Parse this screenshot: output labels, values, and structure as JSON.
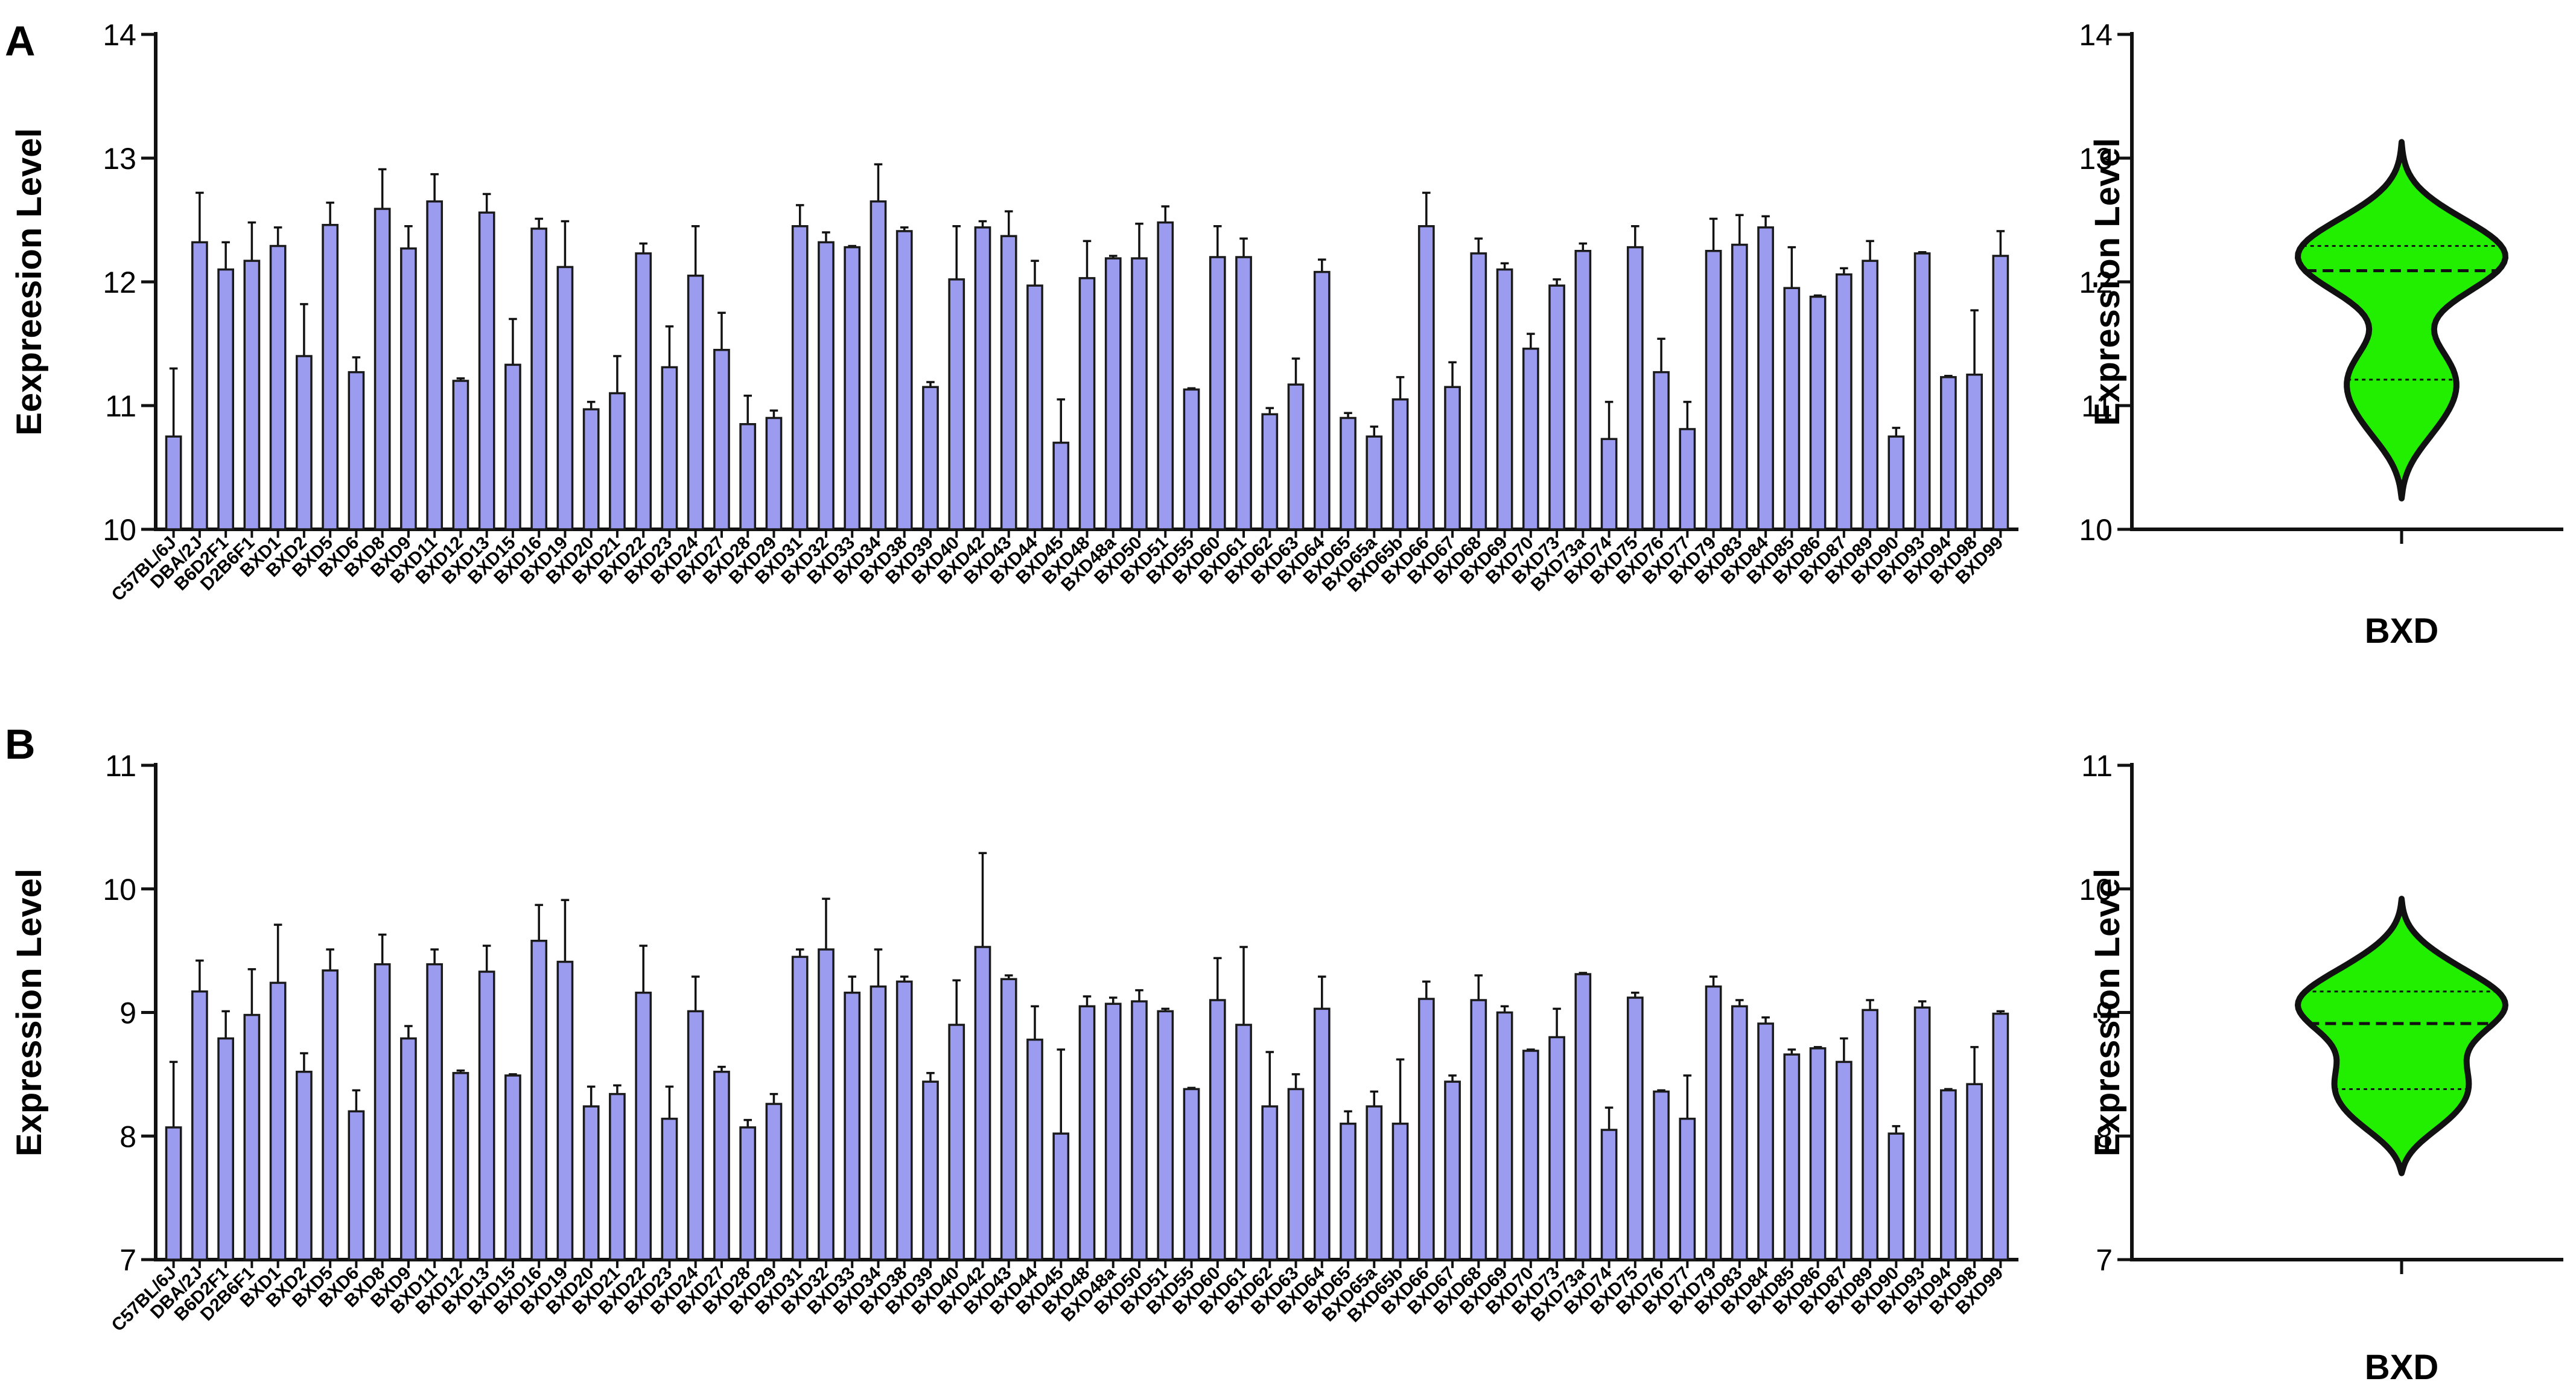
{
  "colors": {
    "bar_fill": "#9b9bf0",
    "bar_stroke": "#1a1a1a",
    "violin_fill": "#22ee00",
    "axis": "#111111"
  },
  "panels": [
    {
      "letter": "A"
    },
    {
      "letter": "B"
    }
  ],
  "chart_data": [
    {
      "type": "bar",
      "panel": "A",
      "ylabel": "Eexpreesion Level",
      "ylim": [
        10,
        14
      ],
      "yticks": [
        10,
        11,
        12,
        13,
        14
      ],
      "error_bars": true,
      "categories": [
        "C57BL/6J",
        "DBA/2J",
        "B6D2F1",
        "D2B6F1",
        "BXD1",
        "BXD2",
        "BXD5",
        "BXD6",
        "BXD8",
        "BXD9",
        "BXD11",
        "BXD12",
        "BXD13",
        "BXD15",
        "BXD16",
        "BXD19",
        "BXD20",
        "BXD21",
        "BXD22",
        "BXD23",
        "BXD24",
        "BXD27",
        "BXD28",
        "BXD29",
        "BXD31",
        "BXD32",
        "BXD33",
        "BXD34",
        "BXD38",
        "BXD39",
        "BXD40",
        "BXD42",
        "BXD43",
        "BXD44",
        "BXD45",
        "BXD48",
        "BXD48a",
        "BXD50",
        "BXD51",
        "BXD55",
        "BXD60",
        "BXD61",
        "BXD62",
        "BXD63",
        "BXD64",
        "BXD65",
        "BXD65a",
        "BXD65b",
        "BXD66",
        "BXD67",
        "BXD68",
        "BXD69",
        "BXD70",
        "BXD73",
        "BXD73a",
        "BXD74",
        "BXD75",
        "BXD76",
        "BXD77",
        "BXD79",
        "BXD83",
        "BXD84",
        "BXD85",
        "BXD86",
        "BXD87",
        "BXD89",
        "BXD90",
        "BXD93",
        "BXD94",
        "BXD98",
        "BXD99"
      ],
      "values": [
        10.75,
        12.32,
        12.1,
        12.17,
        12.29,
        11.4,
        12.46,
        11.27,
        12.59,
        12.27,
        12.65,
        11.2,
        12.56,
        11.33,
        12.43,
        12.12,
        10.97,
        11.1,
        12.23,
        11.31,
        12.05,
        11.45,
        10.85,
        10.9,
        12.45,
        12.32,
        12.28,
        12.65,
        12.41,
        11.15,
        12.02,
        12.44,
        12.37,
        11.97,
        10.7,
        12.03,
        12.19,
        12.19,
        12.48,
        11.13,
        12.2,
        12.2,
        10.93,
        11.17,
        12.08,
        10.9,
        10.75,
        11.05,
        12.45,
        11.15,
        12.23,
        12.1,
        11.46,
        11.97,
        12.25,
        10.73,
        12.28,
        11.27,
        10.81,
        12.25,
        12.3,
        12.44,
        11.95,
        11.88,
        12.06,
        12.17,
        10.75,
        12.23,
        11.23,
        11.25,
        12.21
      ],
      "errors": [
        0.55,
        0.4,
        0.22,
        0.31,
        0.15,
        0.42,
        0.18,
        0.12,
        0.32,
        0.18,
        0.22,
        0.02,
        0.15,
        0.37,
        0.08,
        0.37,
        0.06,
        0.3,
        0.08,
        0.33,
        0.4,
        0.3,
        0.23,
        0.06,
        0.17,
        0.08,
        0.01,
        0.3,
        0.03,
        0.04,
        0.43,
        0.05,
        0.2,
        0.2,
        0.35,
        0.3,
        0.02,
        0.28,
        0.13,
        0.01,
        0.25,
        0.15,
        0.05,
        0.21,
        0.1,
        0.04,
        0.08,
        0.18,
        0.27,
        0.2,
        0.12,
        0.05,
        0.12,
        0.05,
        0.06,
        0.3,
        0.17,
        0.27,
        0.22,
        0.26,
        0.24,
        0.09,
        0.33,
        0.01,
        0.05,
        0.16,
        0.07,
        0.01,
        0.01,
        0.52,
        0.2
      ]
    },
    {
      "type": "violin",
      "panel": "A",
      "ylabel": "Expression Level",
      "xlabel": "BXD",
      "ylim": [
        10,
        14
      ],
      "yticks": [
        10,
        11,
        12,
        13,
        14
      ],
      "median": 12.09,
      "quartiles": [
        11.21,
        12.29
      ],
      "range": [
        10.25,
        13.13
      ]
    },
    {
      "type": "bar",
      "panel": "B",
      "ylabel": "Expression Level",
      "ylim": [
        7,
        11
      ],
      "yticks": [
        7,
        8,
        9,
        10,
        11
      ],
      "error_bars": true,
      "categories": [
        "C57BL/6J",
        "DBA/2J",
        "B6D2F1",
        "D2B6F1",
        "BXD1",
        "BXD2",
        "BXD5",
        "BXD6",
        "BXD8",
        "BXD9",
        "BXD11",
        "BXD12",
        "BXD13",
        "BXD15",
        "BXD16",
        "BXD19",
        "BXD20",
        "BXD21",
        "BXD22",
        "BXD23",
        "BXD24",
        "BXD27",
        "BXD28",
        "BXD29",
        "BXD31",
        "BXD32",
        "BXD33",
        "BXD34",
        "BXD38",
        "BXD39",
        "BXD40",
        "BXD42",
        "BXD43",
        "BXD44",
        "BXD45",
        "BXD48",
        "BXD48a",
        "BXD50",
        "BXD51",
        "BXD55",
        "BXD60",
        "BXD61",
        "BXD62",
        "BXD63",
        "BXD64",
        "BXD65",
        "BXD65a",
        "BXD65b",
        "BXD66",
        "BXD67",
        "BXD68",
        "BXD69",
        "BXD70",
        "BXD73",
        "BXD73a",
        "BXD74",
        "BXD75",
        "BXD76",
        "BXD77",
        "BXD79",
        "BXD83",
        "BXD84",
        "BXD85",
        "BXD86",
        "BXD87",
        "BXD89",
        "BXD90",
        "BXD93",
        "BXD94",
        "BXD98",
        "BXD99"
      ],
      "values": [
        8.07,
        9.17,
        8.79,
        8.98,
        9.24,
        8.52,
        9.34,
        8.2,
        9.39,
        8.79,
        9.39,
        8.51,
        9.33,
        8.49,
        9.58,
        9.41,
        8.24,
        8.34,
        9.16,
        8.14,
        9.01,
        8.52,
        8.07,
        8.26,
        9.45,
        9.51,
        9.16,
        9.21,
        9.25,
        8.44,
        8.9,
        9.53,
        9.27,
        8.78,
        8.02,
        9.05,
        9.07,
        9.09,
        9.01,
        8.38,
        9.1,
        8.9,
        8.24,
        8.38,
        9.03,
        8.1,
        8.24,
        8.1,
        9.11,
        8.44,
        9.1,
        9.0,
        8.69,
        8.8,
        9.31,
        8.05,
        9.12,
        8.36,
        8.14,
        9.21,
        9.05,
        8.91,
        8.66,
        8.71,
        8.6,
        9.02,
        8.02,
        9.04,
        8.37,
        8.42,
        8.99
      ],
      "errors": [
        0.53,
        0.25,
        0.22,
        0.37,
        0.47,
        0.15,
        0.17,
        0.17,
        0.24,
        0.1,
        0.12,
        0.02,
        0.21,
        0.01,
        0.29,
        0.5,
        0.16,
        0.07,
        0.38,
        0.26,
        0.28,
        0.04,
        0.06,
        0.08,
        0.06,
        0.41,
        0.13,
        0.3,
        0.04,
        0.07,
        0.36,
        0.76,
        0.03,
        0.27,
        0.68,
        0.08,
        0.05,
        0.09,
        0.02,
        0.01,
        0.34,
        0.63,
        0.44,
        0.12,
        0.26,
        0.1,
        0.12,
        0.52,
        0.14,
        0.05,
        0.2,
        0.05,
        0.01,
        0.23,
        0.01,
        0.18,
        0.04,
        0.01,
        0.35,
        0.08,
        0.05,
        0.05,
        0.04,
        0.01,
        0.19,
        0.08,
        0.06,
        0.05,
        0.01,
        0.3,
        0.02
      ]
    },
    {
      "type": "violin",
      "panel": "B",
      "ylabel": "Expression Level",
      "xlabel": "BXD",
      "ylim": [
        7,
        11
      ],
      "yticks": [
        7,
        8,
        9,
        10,
        11
      ],
      "median": 8.91,
      "quartiles": [
        8.38,
        9.17
      ],
      "range": [
        7.7,
        9.92
      ]
    }
  ]
}
